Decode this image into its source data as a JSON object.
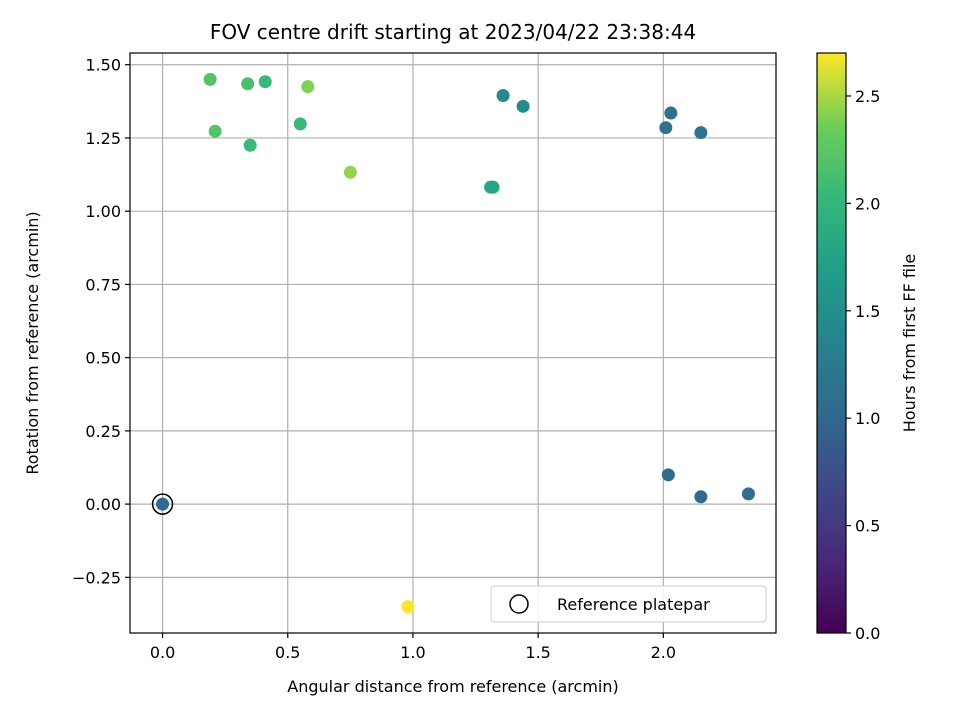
{
  "chart_data": {
    "type": "scatter",
    "title": "FOV centre drift starting at 2023/04/22 23:38:44",
    "xlabel": "Angular distance from reference (arcmin)",
    "ylabel": "Rotation from reference (arcmin)",
    "xlim": [
      -0.13,
      2.45
    ],
    "ylim": [
      -0.44,
      1.54
    ],
    "xticks": [
      0.0,
      0.5,
      1.0,
      1.5,
      2.0
    ],
    "xtick_labels": [
      "0.0",
      "0.5",
      "1.0",
      "1.5",
      "2.0"
    ],
    "yticks": [
      -0.25,
      0.0,
      0.25,
      0.5,
      0.75,
      1.0,
      1.25,
      1.5
    ],
    "ytick_labels": [
      "−0.25",
      "0.00",
      "0.25",
      "0.50",
      "0.75",
      "1.00",
      "1.25",
      "1.50"
    ],
    "grid": true,
    "colormap": "viridis",
    "colorbar": {
      "label": "Hours from first FF file",
      "range": [
        0.0,
        2.7
      ],
      "ticks": [
        0.0,
        0.5,
        1.0,
        1.5,
        2.0,
        2.5
      ],
      "tick_labels": [
        "0.0",
        "0.5",
        "1.0",
        "1.5",
        "2.0",
        "2.5"
      ]
    },
    "legend": {
      "placement": "lower-right",
      "entries": [
        "Reference platepar"
      ]
    },
    "reference_point": {
      "x": 0.0,
      "y": 0.0
    },
    "points": [
      {
        "x": 0.0,
        "y": 0.0,
        "hours": 1.05
      },
      {
        "x": 2.02,
        "y": 0.1,
        "hours": 1.05
      },
      {
        "x": 2.15,
        "y": 0.025,
        "hours": 1.05
      },
      {
        "x": 2.34,
        "y": 0.035,
        "hours": 1.1
      },
      {
        "x": 2.01,
        "y": 1.285,
        "hours": 1.15
      },
      {
        "x": 2.03,
        "y": 1.335,
        "hours": 1.15
      },
      {
        "x": 2.15,
        "y": 1.268,
        "hours": 1.15
      },
      {
        "x": 1.36,
        "y": 1.395,
        "hours": 1.45
      },
      {
        "x": 1.44,
        "y": 1.358,
        "hours": 1.45
      },
      {
        "x": 1.31,
        "y": 1.082,
        "hours": 1.85
      },
      {
        "x": 1.32,
        "y": 1.082,
        "hours": 1.8
      },
      {
        "x": 0.41,
        "y": 1.442,
        "hours": 2.05
      },
      {
        "x": 0.35,
        "y": 1.225,
        "hours": 2.05
      },
      {
        "x": 0.55,
        "y": 1.298,
        "hours": 2.05
      },
      {
        "x": 0.34,
        "y": 1.435,
        "hours": 2.15
      },
      {
        "x": 0.19,
        "y": 1.45,
        "hours": 2.2
      },
      {
        "x": 0.21,
        "y": 1.273,
        "hours": 2.2
      },
      {
        "x": 0.58,
        "y": 1.425,
        "hours": 2.4
      },
      {
        "x": 0.75,
        "y": 1.133,
        "hours": 2.45
      },
      {
        "x": 0.98,
        "y": -0.35,
        "hours": 2.7
      }
    ]
  }
}
